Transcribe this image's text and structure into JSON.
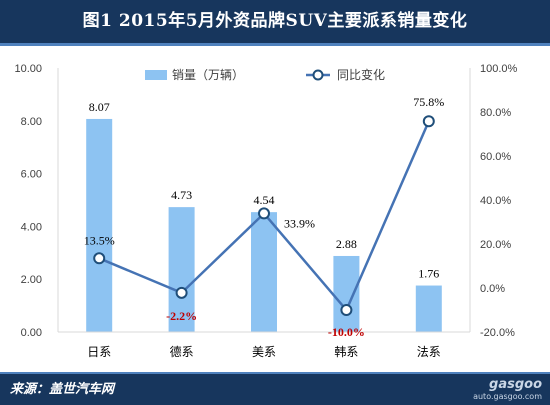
{
  "title": "图1  2015年5月外资品牌SUV主要派系销量变化",
  "footer": {
    "source": "来源：盖世汽车网",
    "watermark_logo": "gasgoo",
    "watermark_url": "auto.gasgoo.com"
  },
  "colors": {
    "bar": "#8dc3f2",
    "line": "#4573b4",
    "title_bg": "#17365d",
    "negative_label": "#c00000"
  },
  "chart_data": {
    "type": "bar",
    "title": "图1  2015年5月外资品牌SUV主要派系销量变化",
    "categories": [
      "日系",
      "德系",
      "美系",
      "韩系",
      "法系"
    ],
    "series": [
      {
        "name": "销量（万辆）",
        "type": "bar",
        "axis": "left",
        "values": [
          8.07,
          4.73,
          4.54,
          2.88,
          1.76
        ]
      },
      {
        "name": "同比变化",
        "type": "line",
        "axis": "right",
        "values": [
          13.5,
          -2.2,
          33.9,
          -10.0,
          75.8
        ]
      }
    ],
    "bar_labels": [
      "8.07",
      "4.73",
      "4.54",
      "2.88",
      "1.76"
    ],
    "line_labels": [
      "13.5%",
      "-2.2%",
      "33.9%",
      "-10.0%",
      "75.8%"
    ],
    "y_left": {
      "min": 0,
      "max": 10,
      "step": 2,
      "ticks": [
        "0.00",
        "2.00",
        "4.00",
        "6.00",
        "8.00",
        "10.00"
      ]
    },
    "y_right": {
      "min": -20,
      "max": 100,
      "step": 20,
      "ticks": [
        "-20.0%",
        "0.0%",
        "20.0%",
        "40.0%",
        "60.0%",
        "80.0%",
        "100.0%"
      ]
    },
    "grid": false,
    "legend": "top"
  }
}
